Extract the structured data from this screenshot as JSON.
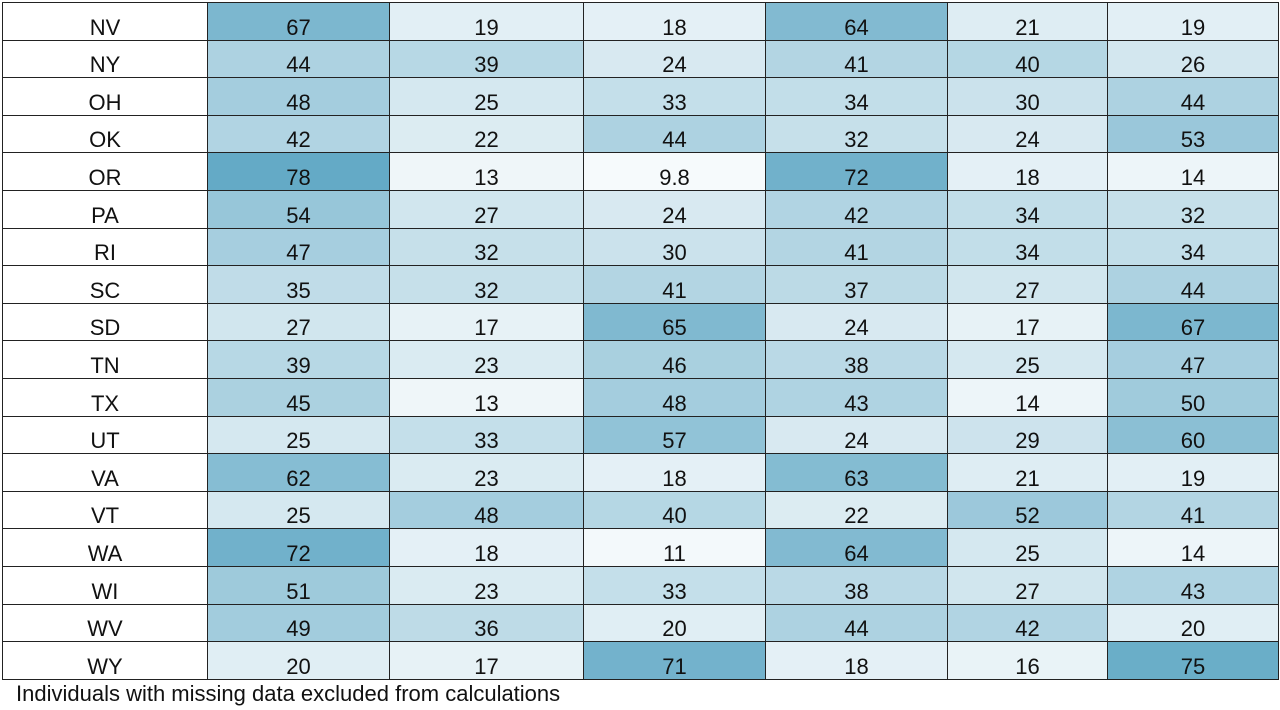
{
  "table": {
    "rows": [
      {
        "state": "NV",
        "values": [
          67,
          19,
          18,
          64,
          21,
          19
        ]
      },
      {
        "state": "NY",
        "values": [
          44,
          39,
          24,
          41,
          40,
          26
        ]
      },
      {
        "state": "OH",
        "values": [
          48,
          25,
          33,
          34,
          30,
          44
        ]
      },
      {
        "state": "OK",
        "values": [
          42,
          22,
          44,
          32,
          24,
          53
        ]
      },
      {
        "state": "OR",
        "values": [
          78,
          13,
          9.8,
          72,
          18,
          14
        ]
      },
      {
        "state": "PA",
        "values": [
          54,
          27,
          24,
          42,
          34,
          32
        ]
      },
      {
        "state": "RI",
        "values": [
          47,
          32,
          30,
          41,
          34,
          34
        ]
      },
      {
        "state": "SC",
        "values": [
          35,
          32,
          41,
          37,
          27,
          44
        ]
      },
      {
        "state": "SD",
        "values": [
          27,
          17,
          65,
          24,
          17,
          67
        ]
      },
      {
        "state": "TN",
        "values": [
          39,
          23,
          46,
          38,
          25,
          47
        ]
      },
      {
        "state": "TX",
        "values": [
          45,
          13,
          48,
          43,
          14,
          50
        ]
      },
      {
        "state": "UT",
        "values": [
          25,
          33,
          57,
          24,
          29,
          60
        ]
      },
      {
        "state": "VA",
        "values": [
          62,
          23,
          18,
          63,
          21,
          19
        ]
      },
      {
        "state": "VT",
        "values": [
          25,
          48,
          40,
          22,
          52,
          41
        ]
      },
      {
        "state": "WA",
        "values": [
          72,
          18,
          11,
          64,
          25,
          14
        ]
      },
      {
        "state": "WI",
        "values": [
          51,
          23,
          33,
          38,
          27,
          43
        ]
      },
      {
        "state": "WV",
        "values": [
          49,
          36,
          20,
          44,
          42,
          20
        ]
      },
      {
        "state": "WY",
        "values": [
          20,
          17,
          71,
          18,
          16,
          75
        ]
      }
    ],
    "low_color": "#f6fafc",
    "high_color": "#64aac6"
  },
  "footnote": "Individuals with missing data excluded from calculations"
}
